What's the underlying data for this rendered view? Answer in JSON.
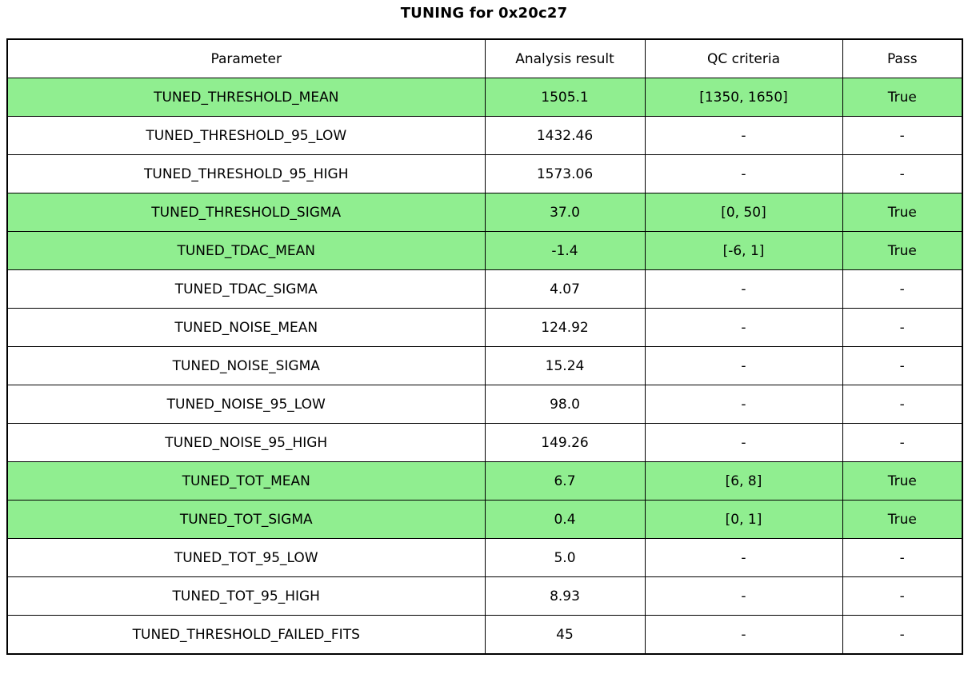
{
  "colors": {
    "pass_green": "#90EE90",
    "border": "#000000",
    "background": "#ffffff",
    "text": "#000000"
  },
  "chart_data": {
    "type": "table",
    "title": "TUNING for 0x20c27",
    "columns": [
      "Parameter",
      "Analysis result",
      "QC criteria",
      "Pass"
    ],
    "legend_note": "rows with highlight=true are filled light green indicating QC pass",
    "rows": [
      {
        "parameter": "TUNED_THRESHOLD_MEAN",
        "analysis_result": "1505.1",
        "qc_criteria": "[1350, 1650]",
        "pass": "True",
        "highlight": true
      },
      {
        "parameter": "TUNED_THRESHOLD_95_LOW",
        "analysis_result": "1432.46",
        "qc_criteria": "-",
        "pass": "-",
        "highlight": false
      },
      {
        "parameter": "TUNED_THRESHOLD_95_HIGH",
        "analysis_result": "1573.06",
        "qc_criteria": "-",
        "pass": "-",
        "highlight": false
      },
      {
        "parameter": "TUNED_THRESHOLD_SIGMA",
        "analysis_result": "37.0",
        "qc_criteria": "[0, 50]",
        "pass": "True",
        "highlight": true
      },
      {
        "parameter": "TUNED_TDAC_MEAN",
        "analysis_result": "-1.4",
        "qc_criteria": "[-6, 1]",
        "pass": "True",
        "highlight": true
      },
      {
        "parameter": "TUNED_TDAC_SIGMA",
        "analysis_result": "4.07",
        "qc_criteria": "-",
        "pass": "-",
        "highlight": false
      },
      {
        "parameter": "TUNED_NOISE_MEAN",
        "analysis_result": "124.92",
        "qc_criteria": "-",
        "pass": "-",
        "highlight": false
      },
      {
        "parameter": "TUNED_NOISE_SIGMA",
        "analysis_result": "15.24",
        "qc_criteria": "-",
        "pass": "-",
        "highlight": false
      },
      {
        "parameter": "TUNED_NOISE_95_LOW",
        "analysis_result": "98.0",
        "qc_criteria": "-",
        "pass": "-",
        "highlight": false
      },
      {
        "parameter": "TUNED_NOISE_95_HIGH",
        "analysis_result": "149.26",
        "qc_criteria": "-",
        "pass": "-",
        "highlight": false
      },
      {
        "parameter": "TUNED_TOT_MEAN",
        "analysis_result": "6.7",
        "qc_criteria": "[6, 8]",
        "pass": "True",
        "highlight": true
      },
      {
        "parameter": "TUNED_TOT_SIGMA",
        "analysis_result": "0.4",
        "qc_criteria": "[0, 1]",
        "pass": "True",
        "highlight": true
      },
      {
        "parameter": "TUNED_TOT_95_LOW",
        "analysis_result": "5.0",
        "qc_criteria": "-",
        "pass": "-",
        "highlight": false
      },
      {
        "parameter": "TUNED_TOT_95_HIGH",
        "analysis_result": "8.93",
        "qc_criteria": "-",
        "pass": "-",
        "highlight": false
      },
      {
        "parameter": "TUNED_THRESHOLD_FAILED_FITS",
        "analysis_result": "45",
        "qc_criteria": "-",
        "pass": "-",
        "highlight": false
      }
    ]
  }
}
